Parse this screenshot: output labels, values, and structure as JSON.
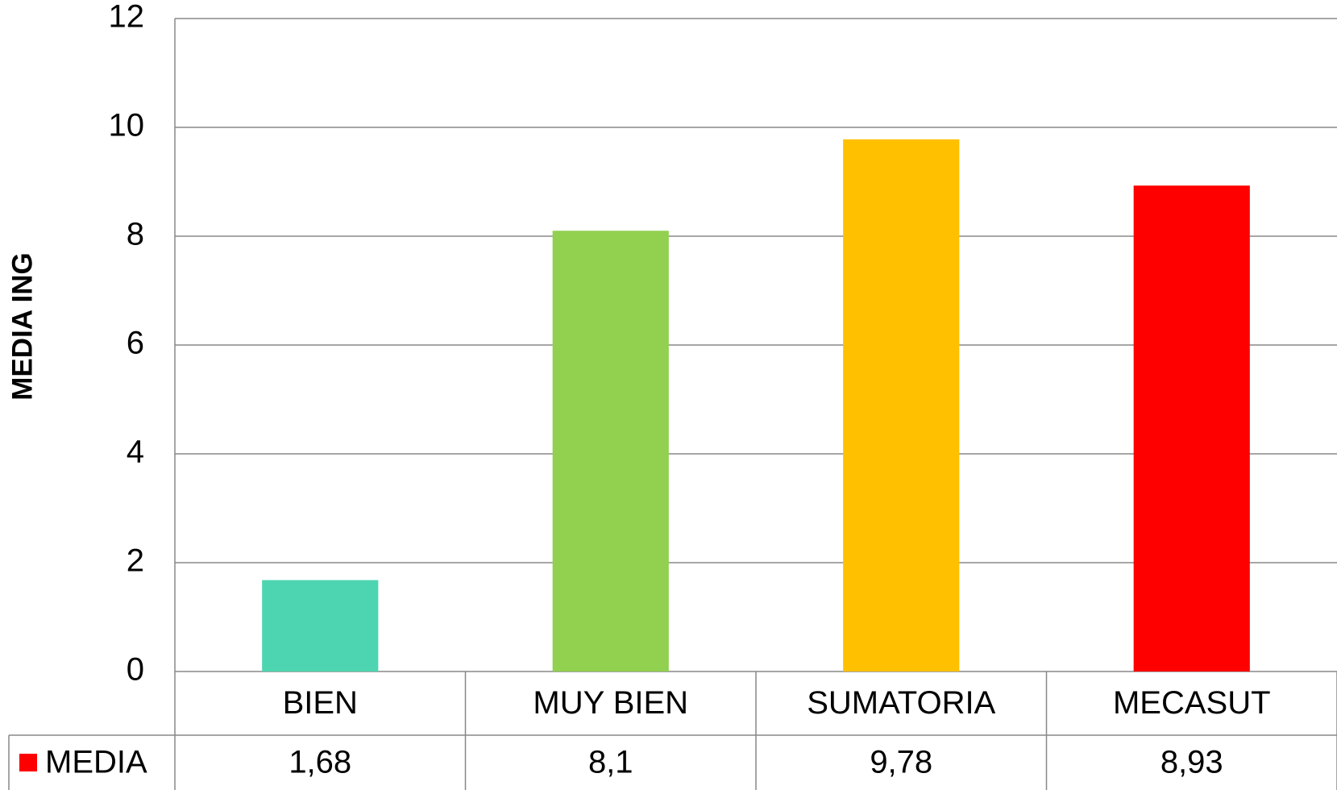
{
  "chart_data": {
    "type": "bar",
    "y_label": "MEDIA ING",
    "categories": [
      "BIEN",
      "MUY BIEN",
      "SUMATORIA",
      "MECASUT"
    ],
    "colors": [
      "#4dd5b1",
      "#92d050",
      "#ffc000",
      "#ff0000"
    ],
    "series": [
      {
        "name": "MEDIA",
        "color": "#ff0000",
        "values": [
          1.68,
          8.1,
          9.78,
          8.93
        ],
        "value_labels": [
          "1,68",
          "8,1",
          "9,78",
          "8,93"
        ]
      }
    ],
    "ylim": [
      0,
      12
    ],
    "yticks": [
      0,
      2,
      4,
      6,
      8,
      10,
      12
    ],
    "grid": true
  }
}
